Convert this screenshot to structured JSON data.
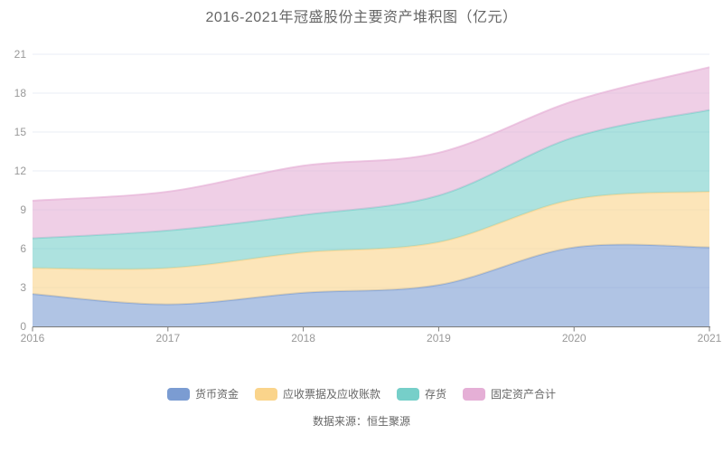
{
  "title": "2016-2021年冠盛股份主要资产堆积图（亿元）",
  "footer": "数据来源：恒生聚源",
  "chart_data": {
    "type": "area",
    "stacked": true,
    "smooth": true,
    "title": "2016-2021年冠盛股份主要资产堆积图（亿元）",
    "x": [
      "2016",
      "2017",
      "2018",
      "2019",
      "2020",
      "2021"
    ],
    "series": [
      {
        "name": "货币资金",
        "color": "#7B9CD2",
        "values": [
          2.5,
          1.7,
          2.6,
          3.2,
          6.1,
          6.1
        ]
      },
      {
        "name": "应收票据及应收账款",
        "color": "#FAD48B",
        "values": [
          2.0,
          2.8,
          3.1,
          3.3,
          3.7,
          4.3
        ]
      },
      {
        "name": "存货",
        "color": "#76CFC9",
        "values": [
          2.3,
          2.9,
          2.9,
          3.6,
          4.8,
          6.3
        ]
      },
      {
        "name": "固定资产合计",
        "color": "#E5AFD6",
        "values": [
          2.9,
          3.0,
          3.8,
          3.3,
          2.8,
          3.3
        ]
      }
    ],
    "cumulative_totals": [
      9.7,
      10.4,
      12.4,
      13.4,
      17.4,
      20.0
    ],
    "xlabel": "",
    "ylabel": "",
    "ylim": [
      0,
      21
    ],
    "yticks": [
      0,
      3,
      6,
      9,
      12,
      15,
      18,
      21
    ],
    "grid": true,
    "legend_position": "bottom",
    "area_opacity": 0.6,
    "colors": {
      "background": "#ffffff",
      "gridline": "#E9EDF4",
      "axis_line": "#7A7A7A",
      "tick_label": "#999999",
      "text": "#666666"
    }
  }
}
